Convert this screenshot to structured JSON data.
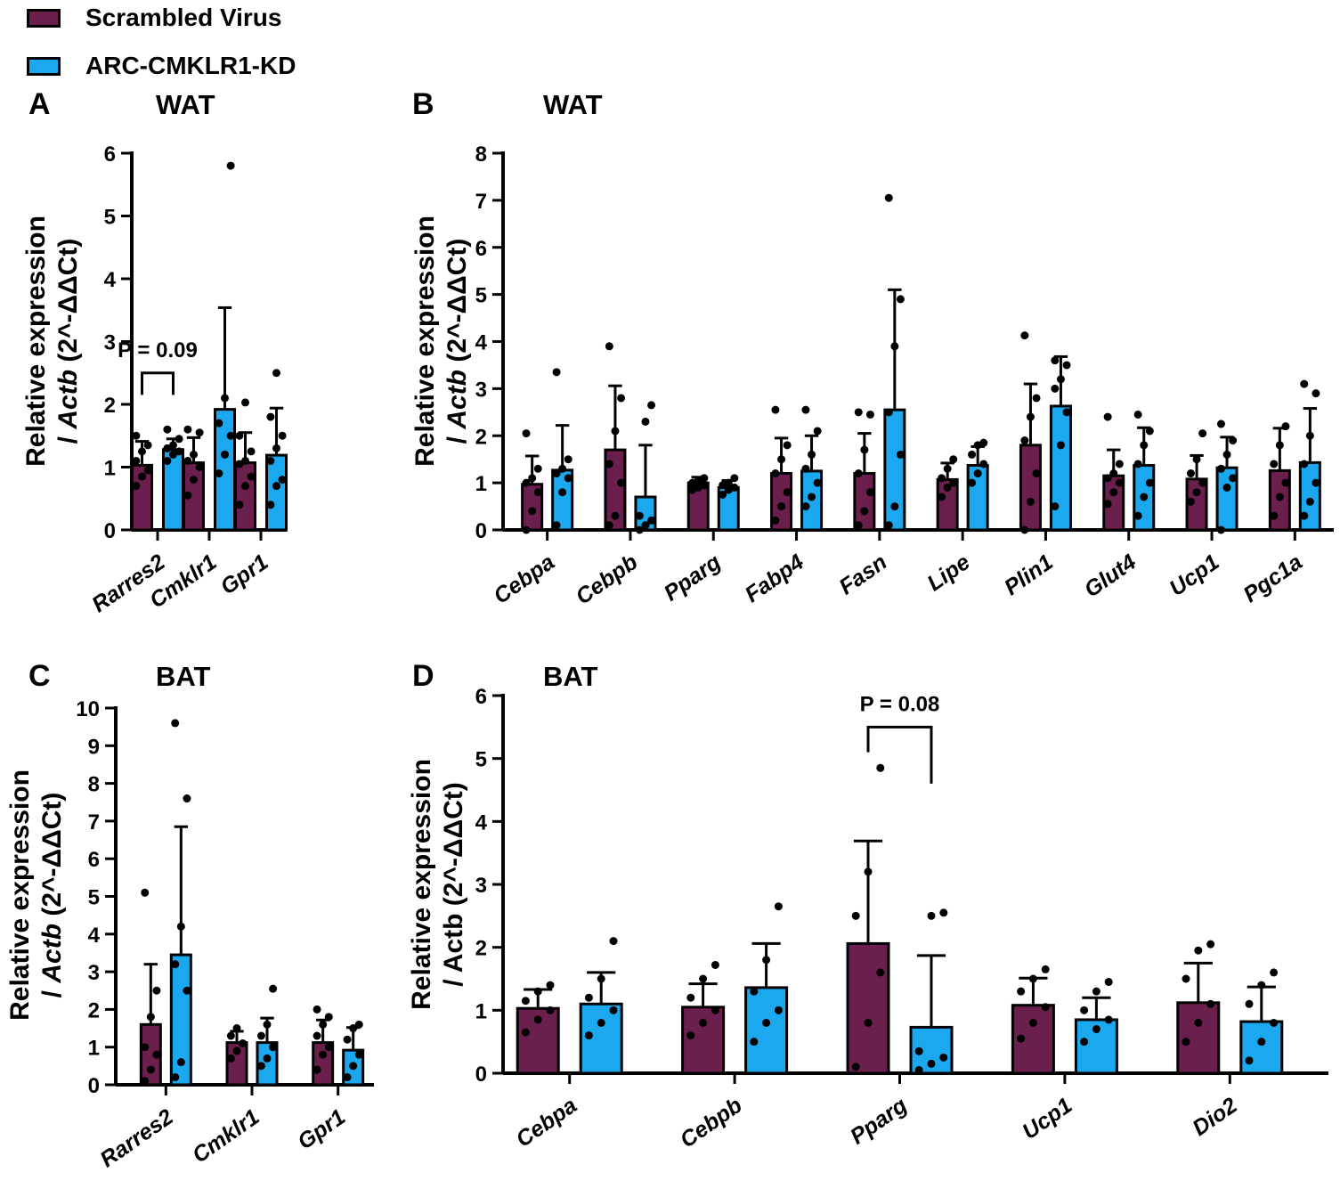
{
  "legend": {
    "items": [
      {
        "label": "Scrambled Virus",
        "color": "#6b1f4d"
      },
      {
        "label": "ARC-CMKLR1-KD",
        "color": "#1ba8ee"
      }
    ]
  },
  "chart_data": [
    {
      "panel": "A",
      "title": "WAT",
      "type": "bar",
      "ylabel": "Relative expression / Actb (2^-ΔΔCt)",
      "ylim": [
        0,
        6
      ],
      "yticks": [
        0,
        1,
        2,
        3,
        4,
        5,
        6
      ],
      "categories": [
        "Rarres2",
        "Cmklr1",
        "Gpr1"
      ],
      "series": [
        {
          "name": "Scrambled Virus",
          "values": [
            1.03,
            1.07,
            1.07
          ],
          "sd": [
            0.38,
            0.4,
            0.48
          ],
          "points": [
            [
              0.7,
              0.85,
              0.95,
              1.1,
              1.25,
              1.35,
              1.5
            ],
            [
              0.55,
              0.8,
              1.0,
              1.1,
              1.2,
              1.55,
              1.6
            ],
            [
              0.4,
              0.7,
              0.85,
              1.05,
              1.1,
              1.25,
              1.5,
              2.03
            ]
          ]
        },
        {
          "name": "ARC-CMKLR1-KD",
          "values": [
            1.28,
            1.92,
            1.19
          ],
          "sd": [
            0.17,
            1.62,
            0.75
          ],
          "points": [
            [
              1.1,
              1.2,
              1.25,
              1.3,
              1.35,
              1.45,
              1.6
            ],
            [
              0.9,
              1.2,
              1.5,
              1.7,
              2.1,
              5.8
            ],
            [
              0.4,
              0.7,
              0.8,
              1.1,
              1.3,
              1.5,
              1.8,
              2.5
            ]
          ]
        }
      ],
      "annotations": [
        {
          "text": "P = 0.09",
          "category": "Rarres2",
          "y": 2.5
        }
      ]
    },
    {
      "panel": "B",
      "title": "WAT",
      "type": "bar",
      "ylabel": "Relative expression / Actb (2^-ΔΔCt)",
      "ylim": [
        0,
        8
      ],
      "yticks": [
        0,
        1,
        2,
        3,
        4,
        5,
        6,
        7,
        8
      ],
      "categories": [
        "Cebpa",
        "Cebpb",
        "Pparg",
        "Fabp4",
        "Fasn",
        "Lipe",
        "Plin1",
        "Glut4",
        "Ucp1",
        "Pgc1a"
      ],
      "series": [
        {
          "name": "Scrambled Virus",
          "values": [
            0.97,
            1.7,
            1.0,
            1.2,
            1.2,
            1.07,
            1.8,
            1.15,
            1.08,
            1.26
          ],
          "sd": [
            0.6,
            1.36,
            0.12,
            0.75,
            0.85,
            0.35,
            1.3,
            0.55,
            0.5,
            0.9
          ],
          "points": [
            [
              0.0,
              0.4,
              0.8,
              1.0,
              1.1,
              1.3,
              2.05
            ],
            [
              0.1,
              0.3,
              1.0,
              1.4,
              2.1,
              2.8,
              3.9
            ],
            [
              0.85,
              0.9,
              0.95,
              1.0,
              1.05,
              1.1
            ],
            [
              0.2,
              0.5,
              0.8,
              1.2,
              1.5,
              1.8,
              2.55
            ],
            [
              0.1,
              0.4,
              0.8,
              1.2,
              1.7,
              2.45,
              2.5
            ],
            [
              0.7,
              0.9,
              1.0,
              1.1,
              1.3,
              1.5
            ],
            [
              0.0,
              0.6,
              1.2,
              1.9,
              2.4,
              2.8,
              4.13
            ],
            [
              0.55,
              0.8,
              1.0,
              1.1,
              1.2,
              1.4,
              2.4
            ],
            [
              0.6,
              0.8,
              1.0,
              1.2,
              1.5,
              2.05
            ],
            [
              0.3,
              0.7,
              1.0,
              1.4,
              1.8,
              2.2
            ]
          ]
        },
        {
          "name": "ARC-CMKLR1-KD",
          "values": [
            1.27,
            0.7,
            0.9,
            1.25,
            2.55,
            1.37,
            2.63,
            1.37,
            1.32,
            1.43
          ],
          "sd": [
            0.95,
            1.1,
            0.15,
            0.75,
            2.55,
            0.4,
            1.05,
            0.8,
            0.65,
            1.15
          ],
          "points": [
            [
              0.1,
              0.8,
              1.1,
              1.2,
              1.3,
              1.5,
              3.35
            ],
            [
              0.0,
              0.1,
              0.2,
              0.3,
              2.3,
              2.65
            ],
            [
              0.75,
              0.85,
              0.9,
              0.95,
              1.0,
              1.1
            ],
            [
              0.5,
              0.7,
              1.0,
              1.3,
              1.6,
              2.1,
              2.55
            ],
            [
              0.1,
              0.5,
              1.6,
              2.5,
              3.9,
              4.9,
              7.05
            ],
            [
              1.0,
              1.2,
              1.4,
              1.6,
              1.8,
              1.85
            ],
            [
              0.5,
              1.8,
              2.5,
              3.0,
              3.2,
              3.5,
              3.6
            ],
            [
              0.3,
              0.7,
              1.0,
              1.4,
              1.8,
              2.1,
              2.45
            ],
            [
              0.0,
              0.9,
              1.1,
              1.3,
              1.6,
              1.9,
              2.25
            ],
            [
              0.3,
              0.6,
              1.0,
              1.4,
              2.0,
              2.9,
              3.1
            ]
          ]
        }
      ]
    },
    {
      "panel": "C",
      "title": "BAT",
      "type": "bar",
      "ylabel": "Relative expression / Actb (2^-ΔΔCt)",
      "ylim": [
        0,
        10
      ],
      "yticks": [
        0,
        1,
        2,
        3,
        4,
        5,
        6,
        7,
        8,
        9,
        10
      ],
      "categories": [
        "Rarres2",
        "Cmklr1",
        "Gpr1"
      ],
      "series": [
        {
          "name": "Scrambled Virus",
          "values": [
            1.6,
            1.12,
            1.12
          ],
          "sd": [
            1.6,
            0.3,
            0.6
          ],
          "points": [
            [
              0.1,
              0.4,
              0.8,
              1.0,
              1.8,
              2.5,
              5.1
            ],
            [
              0.7,
              0.9,
              1.1,
              1.3,
              1.5
            ],
            [
              0.4,
              0.8,
              1.0,
              1.3,
              1.6,
              1.8,
              2.0
            ]
          ]
        },
        {
          "name": "ARC-CMKLR1-KD",
          "values": [
            3.45,
            1.12,
            0.92
          ],
          "sd": [
            3.4,
            0.65,
            0.6
          ],
          "points": [
            [
              0.2,
              0.6,
              2.5,
              3.2,
              4.2,
              7.6,
              9.6
            ],
            [
              0.5,
              0.7,
              1.0,
              1.3,
              1.6,
              2.55
            ],
            [
              0.2,
              0.5,
              0.8,
              1.2,
              1.5,
              1.6
            ]
          ]
        }
      ]
    },
    {
      "panel": "D",
      "title": "BAT",
      "type": "bar",
      "ylabel": "Relative expression / Actb (2^-ΔΔCt)",
      "ylim": [
        0,
        6
      ],
      "yticks": [
        0,
        1,
        2,
        3,
        4,
        5,
        6
      ],
      "categories": [
        "Cebpa",
        "Cebpb",
        "Pparg",
        "Ucp1",
        "Dio2"
      ],
      "series": [
        {
          "name": "Scrambled Virus",
          "values": [
            1.03,
            1.05,
            2.06,
            1.08,
            1.12
          ],
          "sd": [
            0.3,
            0.37,
            1.63,
            0.43,
            0.63
          ],
          "points": [
            [
              0.65,
              0.85,
              1.0,
              1.15,
              1.3,
              1.4
            ],
            [
              0.6,
              0.8,
              1.0,
              1.2,
              1.5,
              1.72
            ],
            [
              0.1,
              0.8,
              1.6,
              2.5,
              3.2,
              4.85
            ],
            [
              0.55,
              0.8,
              1.05,
              1.3,
              1.5,
              1.65
            ],
            [
              0.5,
              0.8,
              1.1,
              1.5,
              1.95,
              2.05
            ]
          ]
        },
        {
          "name": "ARC-CMKLR1-KD",
          "values": [
            1.1,
            1.36,
            0.73,
            0.85,
            0.82
          ],
          "sd": [
            0.5,
            0.7,
            1.14,
            0.35,
            0.55
          ],
          "points": [
            [
              0.6,
              0.8,
              1.0,
              1.2,
              1.5,
              2.1
            ],
            [
              0.5,
              0.8,
              1.0,
              1.3,
              1.8,
              2.65
            ],
            [
              0.05,
              0.15,
              0.25,
              0.35,
              2.5,
              2.55
            ],
            [
              0.5,
              0.7,
              0.85,
              1.0,
              1.3,
              1.45
            ],
            [
              0.2,
              0.5,
              0.8,
              1.1,
              1.4,
              1.6
            ]
          ]
        }
      ],
      "annotations": [
        {
          "text": "P = 0.08",
          "category": "Pparg",
          "y": 5.5
        }
      ]
    }
  ]
}
